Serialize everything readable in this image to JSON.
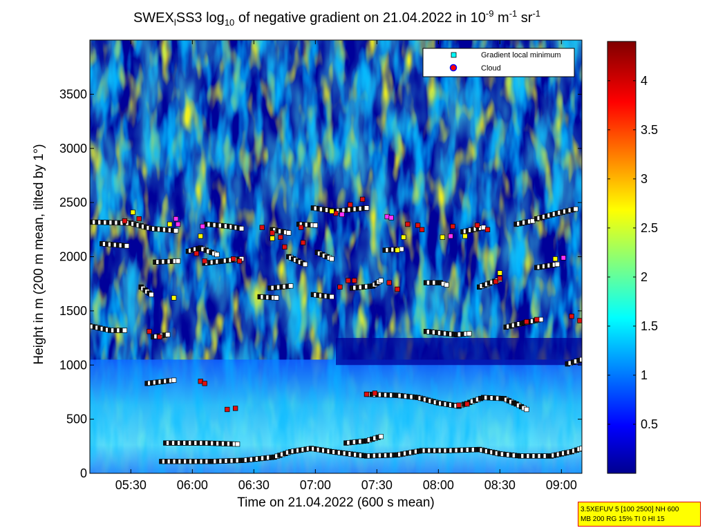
{
  "chart_data": {
    "type": "heatmap",
    "title": {
      "prefix": "SWEX",
      "sub1": "l",
      "mid": "SS3 log",
      "sub2": "10",
      "mid2": " of negative gradient on 21.04.2022 in 10",
      "sup1": "-9",
      "mid3": " m",
      "sup2": "-1",
      "mid4": " sr",
      "sup3": "-1"
    },
    "xlabel": "Time on 21.04.2022 (600 s mean)",
    "ylabel": "Height in m (200 m mean, tilted by 1°)",
    "x_unit": "time",
    "xlim": [
      "05:10",
      "09:10"
    ],
    "ylim": [
      0,
      4000
    ],
    "x_ticks": [
      "05:30",
      "06:00",
      "06:30",
      "07:00",
      "07:30",
      "08:00",
      "08:30",
      "09:00"
    ],
    "y_ticks": [
      0,
      500,
      1000,
      1500,
      2000,
      2500,
      3000,
      3500
    ],
    "colorbar": {
      "range": [
        0,
        4.4
      ],
      "ticks": [
        0.5,
        1,
        1.5,
        2,
        2.5,
        3,
        3.5,
        4
      ],
      "colormap": "jet"
    },
    "legend": {
      "position": "top-right",
      "entries": [
        {
          "label": "Gradient local minimum",
          "marker": "square",
          "color": "#00ffff"
        },
        {
          "label": "Cloud",
          "marker": "circle",
          "color": "#ff0000",
          "edge": "#0000ff"
        }
      ]
    },
    "gradient_minimum_tracks": [
      {
        "points": [
          [
            "05:11",
            2320
          ],
          [
            "05:30",
            2310
          ],
          [
            "05:40",
            2260
          ],
          [
            "05:52",
            2240
          ]
        ]
      },
      {
        "points": [
          [
            "05:16",
            2120
          ],
          [
            "05:28",
            2100
          ]
        ]
      },
      {
        "points": [
          [
            "05:42",
            1950
          ],
          [
            "05:53",
            1960
          ]
        ]
      },
      {
        "points": [
          [
            "05:58",
            2050
          ],
          [
            "06:04",
            2080
          ],
          [
            "06:12",
            2020
          ]
        ]
      },
      {
        "points": [
          [
            "06:06",
            1940
          ],
          [
            "06:15",
            1960
          ],
          [
            "06:24",
            1980
          ]
        ]
      },
      {
        "points": [
          [
            "06:07",
            2300
          ],
          [
            "06:18",
            2280
          ],
          [
            "06:24",
            2260
          ]
        ]
      },
      {
        "points": [
          [
            "06:39",
            2250
          ],
          [
            "06:47",
            2220
          ]
        ]
      },
      {
        "points": [
          [
            "06:38",
            1710
          ],
          [
            "06:48",
            1730
          ]
        ]
      },
      {
        "points": [
          [
            "06:33",
            1630
          ],
          [
            "06:41",
            1620
          ]
        ]
      },
      {
        "points": [
          [
            "06:52",
            2300
          ],
          [
            "07:00",
            2290
          ]
        ]
      },
      {
        "points": [
          [
            "06:47",
            2000
          ],
          [
            "06:55",
            1930
          ]
        ]
      },
      {
        "points": [
          [
            "06:59",
            1650
          ],
          [
            "07:08",
            1630
          ]
        ]
      },
      {
        "points": [
          [
            "07:01",
            2040
          ],
          [
            "07:08",
            1980
          ]
        ]
      },
      {
        "points": [
          [
            "06:59",
            2450
          ],
          [
            "07:10",
            2420
          ],
          [
            "07:25",
            2450
          ]
        ]
      },
      {
        "points": [
          [
            "07:18",
            1710
          ],
          [
            "07:28",
            1730
          ],
          [
            "07:32",
            1780
          ]
        ]
      },
      {
        "points": [
          [
            "07:34",
            2060
          ],
          [
            "07:42",
            2070
          ]
        ]
      },
      {
        "points": [
          [
            "07:54",
            1760
          ],
          [
            "08:01",
            1760
          ],
          [
            "08:04",
            1740
          ]
        ]
      },
      {
        "points": [
          [
            "07:54",
            1310
          ],
          [
            "08:09",
            1280
          ],
          [
            "08:15",
            1290
          ]
        ]
      },
      {
        "points": [
          [
            "08:12",
            2230
          ],
          [
            "08:22",
            2270
          ]
        ]
      },
      {
        "points": [
          [
            "08:20",
            1720
          ],
          [
            "08:30",
            1790
          ]
        ]
      },
      {
        "points": [
          [
            "08:33",
            1350
          ],
          [
            "08:42",
            1390
          ],
          [
            "08:50",
            1420
          ]
        ]
      },
      {
        "points": [
          [
            "08:38",
            2300
          ],
          [
            "08:46",
            2330
          ]
        ]
      },
      {
        "points": [
          [
            "08:48",
            2350
          ],
          [
            "08:58",
            2400
          ],
          [
            "09:07",
            2440
          ]
        ]
      },
      {
        "points": [
          [
            "08:48",
            1900
          ],
          [
            "08:58",
            1930
          ]
        ]
      },
      {
        "points": [
          [
            "09:03",
            1010
          ],
          [
            "09:10",
            1050
          ]
        ]
      },
      {
        "points": [
          [
            "05:10",
            1360
          ],
          [
            "05:20",
            1320
          ],
          [
            "05:27",
            1320
          ]
        ]
      },
      {
        "points": [
          [
            "05:41",
            1260
          ],
          [
            "05:48",
            1280
          ]
        ]
      },
      {
        "points": [
          [
            "05:35",
            1720
          ],
          [
            "05:40",
            1650
          ]
        ]
      },
      {
        "points": [
          [
            "05:38",
            830
          ],
          [
            "05:51",
            860
          ]
        ]
      },
      {
        "points": [
          [
            "05:47",
            280
          ],
          [
            "06:06",
            280
          ],
          [
            "06:22",
            270
          ]
        ]
      },
      {
        "points": [
          [
            "05:45",
            110
          ],
          [
            "06:10",
            110
          ],
          [
            "06:25",
            120
          ],
          [
            "06:40",
            150
          ],
          [
            "06:48",
            200
          ],
          [
            "06:58",
            230
          ],
          [
            "07:08",
            200
          ],
          [
            "07:25",
            160
          ],
          [
            "07:40",
            170
          ],
          [
            "07:52",
            210
          ],
          [
            "08:05",
            210
          ],
          [
            "08:20",
            220
          ],
          [
            "08:30",
            180
          ],
          [
            "08:40",
            160
          ],
          [
            "08:55",
            160
          ],
          [
            "09:05",
            200
          ],
          [
            "09:10",
            230
          ]
        ]
      },
      {
        "points": [
          [
            "07:15",
            280
          ],
          [
            "07:25",
            300
          ],
          [
            "07:32",
            340
          ]
        ]
      },
      {
        "points": [
          [
            "07:25",
            730
          ],
          [
            "07:40",
            720
          ],
          [
            "07:50",
            700
          ],
          [
            "08:00",
            650
          ],
          [
            "08:10",
            620
          ],
          [
            "08:22",
            700
          ],
          [
            "08:32",
            690
          ],
          [
            "08:38",
            640
          ],
          [
            "08:43",
            590
          ]
        ]
      }
    ],
    "cloud_marker_groups": [
      {
        "points": [
          [
            "05:27",
            2330
          ],
          [
            "05:34",
            2350
          ]
        ]
      },
      {
        "points": [
          [
            "06:02",
            2030
          ],
          [
            "06:06",
            1960
          ]
        ]
      },
      {
        "points": [
          [
            "06:20",
            1980
          ],
          [
            "06:23",
            1960
          ]
        ]
      },
      {
        "points": [
          [
            "06:34",
            2270
          ],
          [
            "06:39",
            2220
          ]
        ]
      },
      {
        "points": [
          [
            "06:43",
            2180
          ],
          [
            "06:45",
            2090
          ]
        ]
      },
      {
        "points": [
          [
            "06:53",
            2270
          ],
          [
            "06:54",
            2130
          ]
        ]
      },
      {
        "points": [
          [
            "07:10",
            2400
          ],
          [
            "07:17",
            2480
          ],
          [
            "07:23",
            2530
          ]
        ]
      },
      {
        "points": [
          [
            "07:12",
            1720
          ],
          [
            "07:16",
            1780
          ],
          [
            "07:19",
            1780
          ]
        ]
      },
      {
        "points": [
          [
            "07:36",
            1760
          ],
          [
            "07:40",
            1700
          ]
        ]
      },
      {
        "points": [
          [
            "07:45",
            2300
          ],
          [
            "07:50",
            2290
          ],
          [
            "07:52",
            2250
          ]
        ]
      },
      {
        "points": [
          [
            "08:07",
            2280
          ],
          [
            "08:19",
            2290
          ],
          [
            "08:24",
            2250
          ]
        ]
      },
      {
        "points": [
          [
            "08:28",
            1770
          ],
          [
            "08:30",
            1800
          ]
        ]
      },
      {
        "points": [
          [
            "08:43",
            1400
          ],
          [
            "08:48",
            1420
          ]
        ]
      },
      {
        "points": [
          [
            "09:05",
            1450
          ],
          [
            "09:09",
            1410
          ]
        ]
      },
      {
        "points": [
          [
            "05:39",
            1310
          ],
          [
            "05:44",
            1260
          ]
        ]
      },
      {
        "points": [
          [
            "06:04",
            850
          ],
          [
            "06:06",
            830
          ]
        ]
      },
      {
        "points": [
          [
            "06:17",
            590
          ],
          [
            "06:21",
            600
          ]
        ]
      },
      {
        "points": [
          [
            "07:25",
            730
          ],
          [
            "07:29",
            740
          ]
        ]
      },
      {
        "points": [
          [
            "08:10",
            630
          ],
          [
            "08:14",
            640
          ]
        ]
      }
    ],
    "yellow_marker_groups": [
      {
        "points": [
          [
            "05:31",
            2410
          ],
          [
            "05:49",
            2300
          ],
          [
            "05:51",
            1620
          ],
          [
            "06:04",
            2190
          ]
        ]
      },
      {
        "points": [
          [
            "06:39",
            2170
          ],
          [
            "07:08",
            2420
          ],
          [
            "07:40",
            2060
          ],
          [
            "07:43",
            2180
          ]
        ]
      },
      {
        "points": [
          [
            "08:02",
            2180
          ],
          [
            "08:13",
            2190
          ],
          [
            "08:30",
            1850
          ],
          [
            "08:57",
            1980
          ]
        ]
      }
    ],
    "magenta_marker_groups": [
      {
        "points": [
          [
            "05:52",
            2350
          ],
          [
            "05:53",
            2300
          ],
          [
            "06:05",
            2280
          ],
          [
            "07:13",
            2390
          ]
        ]
      },
      {
        "points": [
          [
            "07:35",
            2370
          ],
          [
            "07:37",
            2360
          ],
          [
            "08:06",
            2190
          ],
          [
            "09:01",
            1990
          ]
        ]
      }
    ]
  },
  "info_box": {
    "line1": "3.5XEFUV 5 [100 2500] NH 600",
    "line2": "MB 200 RG 15% TI 0 HI 15"
  }
}
